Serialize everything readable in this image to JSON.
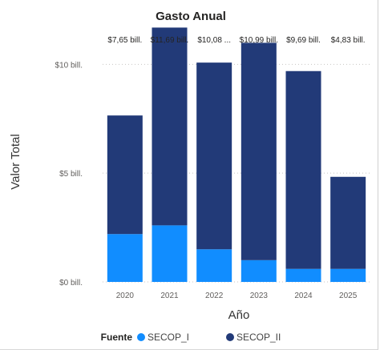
{
  "chart_data": {
    "type": "bar",
    "stacked": true,
    "title": "Gasto Anual",
    "xlabel": "Año",
    "ylabel": "Valor Total",
    "categories": [
      "2020",
      "2021",
      "2022",
      "2023",
      "2024",
      "2025"
    ],
    "series": [
      {
        "name": "SECOP_I",
        "color": "#118dff",
        "values": [
          2.2,
          2.6,
          1.5,
          1.0,
          0.6,
          0.6
        ]
      },
      {
        "name": "SECOP_II",
        "color": "#223a78",
        "values": [
          5.45,
          9.09,
          8.58,
          9.99,
          9.09,
          4.23
        ]
      }
    ],
    "totals_labels": [
      "$7,65 bill.",
      "$11,69 bill.",
      "$10,08 ...",
      "$10,99 bill.",
      "$9,69 bill.",
      "$4,83 bill."
    ],
    "ylim": [
      0,
      12
    ],
    "yticks": [
      {
        "value": 0,
        "label": "$0 bill."
      },
      {
        "value": 5,
        "label": "$5 bill."
      },
      {
        "value": 10,
        "label": "$10 bill."
      }
    ],
    "grid": true,
    "legend": {
      "title": "Fuente",
      "position": "bottom"
    }
  }
}
